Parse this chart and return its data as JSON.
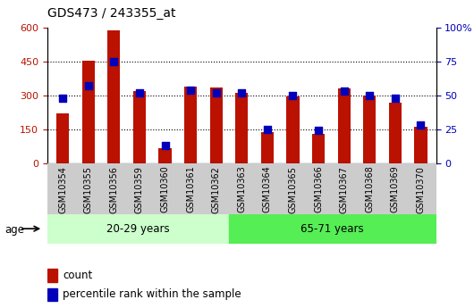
{
  "title": "GDS473 / 243355_at",
  "categories": [
    "GSM10354",
    "GSM10355",
    "GSM10356",
    "GSM10359",
    "GSM10360",
    "GSM10361",
    "GSM10362",
    "GSM10363",
    "GSM10364",
    "GSM10365",
    "GSM10366",
    "GSM10367",
    "GSM10368",
    "GSM10369",
    "GSM10370"
  ],
  "count_values": [
    220,
    455,
    590,
    320,
    65,
    340,
    335,
    310,
    138,
    295,
    130,
    330,
    300,
    270,
    160
  ],
  "percentile_values": [
    48,
    57,
    75,
    52,
    13,
    54,
    52,
    52,
    25,
    50,
    24,
    53,
    50,
    48,
    28
  ],
  "group1_label": "20-29 years",
  "group2_label": "65-71 years",
  "group1_count": 7,
  "group2_count": 8,
  "age_label": "age",
  "ylim_left": [
    0,
    600
  ],
  "ylim_right": [
    0,
    100
  ],
  "yticks_left": [
    0,
    150,
    300,
    450,
    600
  ],
  "yticks_right": [
    0,
    25,
    50,
    75,
    100
  ],
  "bar_color": "#bb1100",
  "dot_color": "#0000bb",
  "group1_bg": "#ccffcc",
  "group2_bg": "#55ee55",
  "tick_bg": "#cccccc",
  "legend_count_label": "count",
  "legend_pct_label": "percentile rank within the sample",
  "title_fontsize": 10,
  "tick_fontsize": 7,
  "axis_fontsize": 8,
  "grid_color": "black",
  "grid_linestyle": "dotted",
  "grid_linewidth": 0.8
}
